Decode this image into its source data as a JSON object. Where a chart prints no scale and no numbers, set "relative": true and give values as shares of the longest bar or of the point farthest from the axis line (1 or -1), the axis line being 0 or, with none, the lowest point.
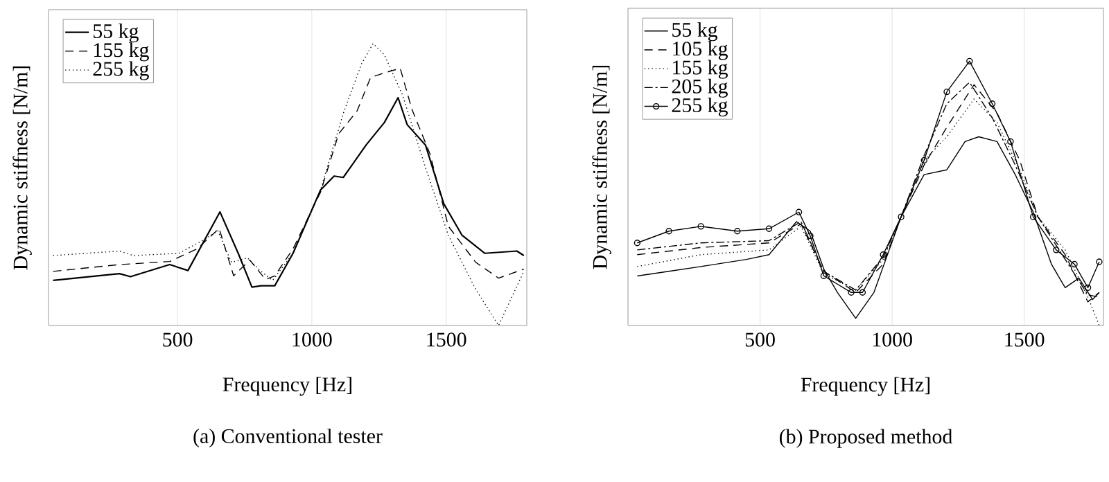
{
  "chart_data": [
    {
      "type": "line",
      "title": "(a)  Conventional tester",
      "xlabel": "Frequency [Hz]",
      "ylabel": "Dynamic stiffness [N/m]",
      "relative": true,
      "xlim": [
        20,
        1800
      ],
      "xticks": [
        500,
        1000,
        1500
      ],
      "grid": true,
      "legend": "top left",
      "series": [
        {
          "name": "55 kg",
          "color": "#000000",
          "line_style": "solid",
          "x": [
            37,
            284,
            325,
            471,
            539,
            658,
            726,
            777,
            811,
            862,
            930,
            1032,
            1083,
            1117,
            1202,
            1270,
            1321,
            1355,
            1423,
            1491,
            1559,
            1644,
            1763,
            1789
          ],
          "values": [
            0.16,
            0.184,
            0.173,
            0.216,
            0.195,
            0.403,
            0.256,
            0.136,
            0.141,
            0.141,
            0.256,
            0.48,
            0.53,
            0.525,
            0.64,
            0.72,
            0.808,
            0.712,
            0.64,
            0.432,
            0.32,
            0.256,
            0.264,
            0.248
          ]
        },
        {
          "name": "155 kg",
          "color": "#000000",
          "line_style": "dashed",
          "x": [
            37,
            284,
            471,
            573,
            655,
            709,
            769,
            828,
            862,
            930,
            1032,
            1100,
            1168,
            1219,
            1270,
            1329,
            1372,
            1440,
            1508,
            1610,
            1695,
            1789
          ],
          "values": [
            0.192,
            0.216,
            0.227,
            0.272,
            0.344,
            0.176,
            0.232,
            0.163,
            0.176,
            0.272,
            0.472,
            0.68,
            0.76,
            0.88,
            0.896,
            0.912,
            0.768,
            0.608,
            0.352,
            0.224,
            0.168,
            0.2
          ]
        },
        {
          "name": "255 kg",
          "color": "#000000",
          "line_style": "dotted",
          "x": [
            37,
            284,
            335,
            505,
            599,
            650,
            701,
            760,
            811,
            854,
            930,
            1032,
            1117,
            1185,
            1228,
            1270,
            1338,
            1423,
            1508,
            1610,
            1695,
            1789
          ],
          "values": [
            0.248,
            0.264,
            0.248,
            0.256,
            0.304,
            0.336,
            0.224,
            0.24,
            0.192,
            0.16,
            0.256,
            0.48,
            0.752,
            0.928,
            1.0,
            0.96,
            0.816,
            0.56,
            0.32,
            0.128,
            0,
            0.192
          ]
        }
      ]
    },
    {
      "type": "line",
      "title": "(b)  Proposed method",
      "xlabel": "Frequency [Hz]",
      "ylabel": "Dynamic stiffness [N/m]",
      "relative": true,
      "xlim": [
        0,
        1800
      ],
      "xticks": [
        500,
        1000,
        1500
      ],
      "grid": true,
      "legend": "top left",
      "series": [
        {
          "name": "55 kg",
          "color": "#000000",
          "line_style": "solid",
          "x": [
            35,
            155,
            276,
            448,
            534,
            638,
            690,
            741,
            793,
            862,
            931,
            1034,
            1121,
            1207,
            1276,
            1328,
            1397,
            1466,
            1534,
            1603,
            1655,
            1707,
            1759,
            1784
          ],
          "values": [
            0.1875,
            0.205,
            0.223,
            0.25,
            0.268,
            0.393,
            0.357,
            0.214,
            0.125,
            0.027,
            0.125,
            0.411,
            0.571,
            0.589,
            0.696,
            0.714,
            0.696,
            0.571,
            0.429,
            0.232,
            0.143,
            0.179,
            0.098,
            0.125
          ]
        },
        {
          "name": "105 kg",
          "color": "#000000",
          "line_style": "dashed",
          "x": [
            35,
            276,
            534,
            655,
            741,
            862,
            966,
            1034,
            1121,
            1207,
            1310,
            1397,
            1483,
            1552,
            1655,
            1741,
            1784
          ],
          "values": [
            0.268,
            0.295,
            0.3125,
            0.384,
            0.205,
            0.125,
            0.232,
            0.411,
            0.607,
            0.75,
            0.911,
            0.804,
            0.625,
            0.411,
            0.268,
            0.089,
            0.125
          ]
        },
        {
          "name": "155 kg",
          "color": "#000000",
          "line_style": "dotted",
          "x": [
            35,
            276,
            534,
            655,
            741,
            862,
            966,
            1034,
            1121,
            1207,
            1310,
            1397,
            1483,
            1552,
            1655,
            1741,
            1784
          ],
          "values": [
            0.223,
            0.268,
            0.286,
            0.375,
            0.196,
            0.134,
            0.25,
            0.411,
            0.625,
            0.714,
            0.857,
            0.768,
            0.589,
            0.411,
            0.286,
            0.107,
            0
          ]
        },
        {
          "name": "205 kg",
          "color": "#000000",
          "line_style": "dashdot",
          "x": [
            35,
            276,
            534,
            655,
            741,
            862,
            966,
            1034,
            1121,
            1207,
            1293,
            1379,
            1466,
            1552,
            1655,
            1741,
            1784
          ],
          "values": [
            0.286,
            0.3125,
            0.321,
            0.393,
            0.205,
            0.134,
            0.259,
            0.411,
            0.643,
            0.839,
            0.92,
            0.786,
            0.607,
            0.411,
            0.25,
            0.116,
            0.107
          ]
        },
        {
          "name": "255 kg",
          "color": "#000000",
          "line_style": "solid",
          "marker": "circle",
          "x": [
            35,
            155,
            276,
            414,
            534,
            647,
            690,
            741,
            845,
            888,
            966,
            1034,
            1121,
            1207,
            1293,
            1379,
            1448,
            1534,
            1621,
            1690,
            1741,
            1784
          ],
          "values": [
            0.3125,
            0.357,
            0.375,
            0.357,
            0.366,
            0.429,
            0.339,
            0.188,
            0.125,
            0.125,
            0.268,
            0.411,
            0.625,
            0.884,
            1.0,
            0.839,
            0.696,
            0.411,
            0.286,
            0.232,
            0.143,
            0.241
          ]
        }
      ]
    }
  ]
}
